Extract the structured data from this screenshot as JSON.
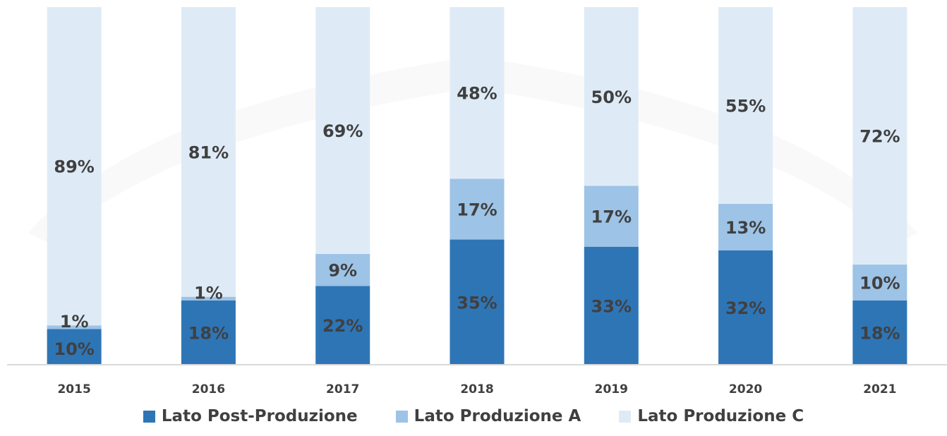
{
  "chart_data": {
    "type": "bar",
    "stacked": true,
    "percent_stacked": true,
    "categories": [
      "2015",
      "2016",
      "2017",
      "2018",
      "2019",
      "2020",
      "2021"
    ],
    "series": [
      {
        "name": "Lato Post-Produzione",
        "color": "#2e75b6",
        "values": [
          10,
          18,
          22,
          35,
          33,
          32,
          18
        ],
        "labels": [
          "10%",
          "18%",
          "22%",
          "35%",
          "33%",
          "32%",
          "18%"
        ]
      },
      {
        "name": "Lato Produzione A",
        "color": "#9dc3e6",
        "values": [
          1,
          1,
          9,
          17,
          17,
          13,
          10
        ],
        "labels": [
          "1%",
          "1%",
          "9%",
          "17%",
          "17%",
          "13%",
          "10%"
        ]
      },
      {
        "name": "Lato Produzione C",
        "color": "#deebf7",
        "values": [
          89,
          81,
          69,
          48,
          50,
          55,
          72
        ],
        "labels": [
          "89%",
          "81%",
          "69%",
          "48%",
          "50%",
          "55%",
          "72%"
        ]
      }
    ],
    "ylim": [
      0,
      100
    ],
    "grid": false,
    "legend_position": "bottom"
  }
}
